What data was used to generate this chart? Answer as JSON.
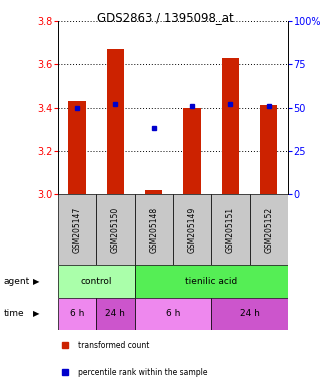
{
  "title": "GDS2863 / 1395098_at",
  "samples": [
    "GSM205147",
    "GSM205150",
    "GSM205148",
    "GSM205149",
    "GSM205151",
    "GSM205152"
  ],
  "bar_values": [
    3.43,
    3.67,
    3.02,
    3.4,
    3.63,
    3.41
  ],
  "percentile_ranks": [
    50,
    52,
    38,
    51,
    52,
    51
  ],
  "bar_color": "#cc2200",
  "percentile_color": "#0000cc",
  "ylim_left": [
    3.0,
    3.8
  ],
  "ylim_right": [
    0,
    100
  ],
  "yticks_left": [
    3.0,
    3.2,
    3.4,
    3.6,
    3.8
  ],
  "yticks_right": [
    0,
    25,
    50,
    75,
    100
  ],
  "agent_labels": [
    {
      "label": "control",
      "start": 0,
      "end": 2,
      "color": "#aaffaa"
    },
    {
      "label": "tienilic acid",
      "start": 2,
      "end": 6,
      "color": "#55ee55"
    }
  ],
  "time_labels": [
    {
      "label": "6 h",
      "start": 0,
      "end": 1,
      "color": "#ee88ee"
    },
    {
      "label": "24 h",
      "start": 1,
      "end": 2,
      "color": "#cc55cc"
    },
    {
      "label": "6 h",
      "start": 2,
      "end": 4,
      "color": "#ee88ee"
    },
    {
      "label": "24 h",
      "start": 4,
      "end": 6,
      "color": "#cc55cc"
    }
  ],
  "legend_items": [
    {
      "label": "transformed count",
      "color": "#cc2200"
    },
    {
      "label": "percentile rank within the sample",
      "color": "#0000cc"
    }
  ],
  "bar_width": 0.45,
  "sample_bg": "#c8c8c8"
}
